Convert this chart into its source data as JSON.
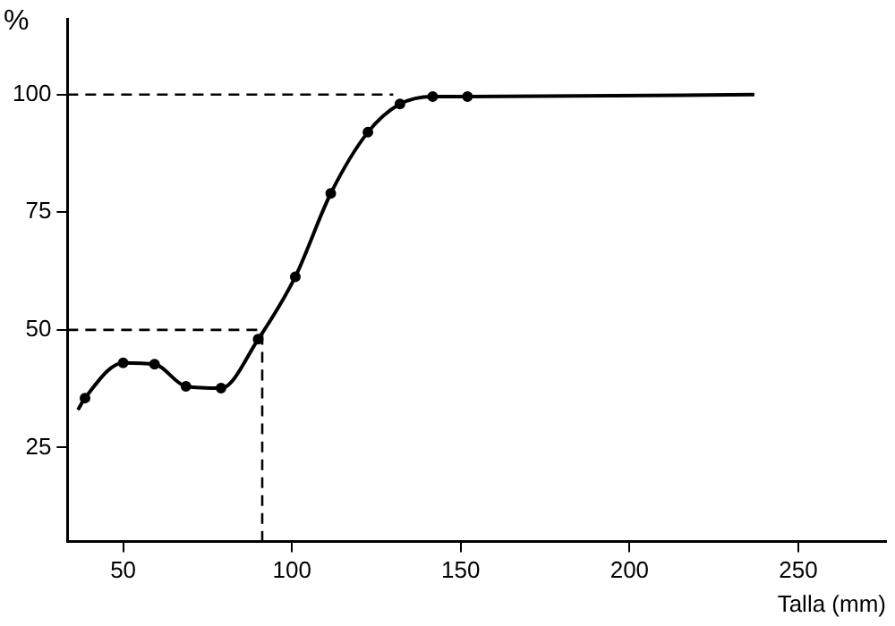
{
  "chart_data": {
    "type": "line",
    "xlabel": "Talla (mm)",
    "ylabel": "%",
    "xlim": [
      33.5,
      276
    ],
    "xticks": [
      50,
      100,
      150,
      200,
      250
    ],
    "ylim": [
      5,
      116
    ],
    "yticks": [
      25,
      50,
      75,
      100
    ],
    "grid": false,
    "legend": false,
    "series": [
      {
        "color": "#000000",
        "marker": "none",
        "line_style": "solid",
        "x": [
          36.6,
          38.7,
          50,
          59.3,
          68.6,
          79,
          90,
          101,
          111.5,
          122.5,
          132,
          141.7,
          152,
          237
        ],
        "values": [
          33,
          35.5,
          43,
          42.7,
          38,
          37.6,
          48,
          61.3,
          79,
          92,
          98,
          99.6,
          99.6,
          100
        ]
      },
      {
        "type": "scatter",
        "color": "#000000",
        "marker": "circle",
        "x": [
          38.7,
          50,
          59.3,
          68.6,
          79,
          90,
          101,
          111.5,
          122.5,
          132,
          141.7,
          152
        ],
        "values": [
          35.5,
          43,
          42.7,
          38,
          37.6,
          48,
          61.3,
          79,
          92,
          98,
          99.6,
          99.6
        ]
      },
      {
        "color": "#000000",
        "marker": "none",
        "line_style": "dashed",
        "x": [
          33.5,
          130
        ],
        "values": [
          100,
          100
        ]
      },
      {
        "color": "#000000",
        "marker": "none",
        "line_style": "dashed",
        "x": [
          33.5,
          91.2
        ],
        "values": [
          50,
          50
        ]
      },
      {
        "color": "#000000",
        "marker": "none",
        "line_style": "dashed",
        "x": [
          91.2,
          91.2
        ],
        "values": [
          5,
          50
        ]
      }
    ]
  }
}
